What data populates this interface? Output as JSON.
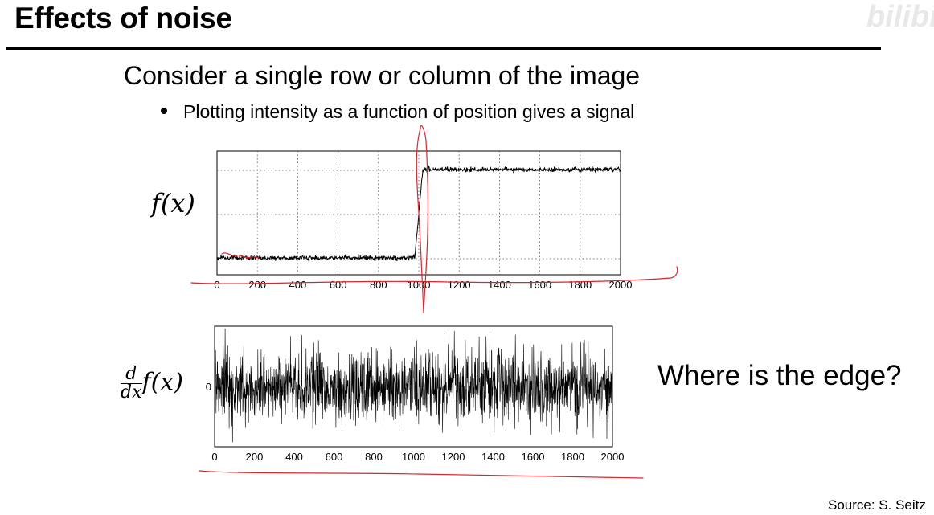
{
  "slide": {
    "title": "Effects of noise",
    "heading": "Consider a single row or column of the image",
    "bullet": "Plotting intensity as a function of position gives a signal",
    "question": "Where is the edge?",
    "source": "Source: S. Seitz",
    "watermark": "bilibili"
  },
  "colors": {
    "annotation": "#d9262b",
    "plot_line": "#000000",
    "grid": "#555555"
  },
  "chart_data": [
    {
      "type": "line",
      "ylabel": "f(x)",
      "xlim": [
        0,
        2000
      ],
      "xticks": [
        0,
        200,
        400,
        600,
        800,
        1000,
        1200,
        1400,
        1600,
        1800,
        2000
      ],
      "grid": true,
      "series": [
        {
          "values_description_free": true,
          "segments": [
            {
              "x": [
                0,
                980
              ],
              "y_level": 0.0,
              "noise": "low"
            },
            {
              "x": [
                980,
                1020
              ],
              "y_level": "ramp"
            },
            {
              "x": [
                1020,
                2000
              ],
              "y_level": 1.0,
              "noise": "low"
            }
          ]
        }
      ]
    },
    {
      "type": "line",
      "ylabel": "d/dx f(x)",
      "yticks": [
        0
      ],
      "xlim": [
        0,
        2000
      ],
      "xticks": [
        0,
        200,
        400,
        600,
        800,
        1000,
        1200,
        1400,
        1600,
        1800,
        2000
      ],
      "grid": false,
      "series": [
        {
          "noise": "high",
          "mean": 0
        }
      ]
    }
  ]
}
